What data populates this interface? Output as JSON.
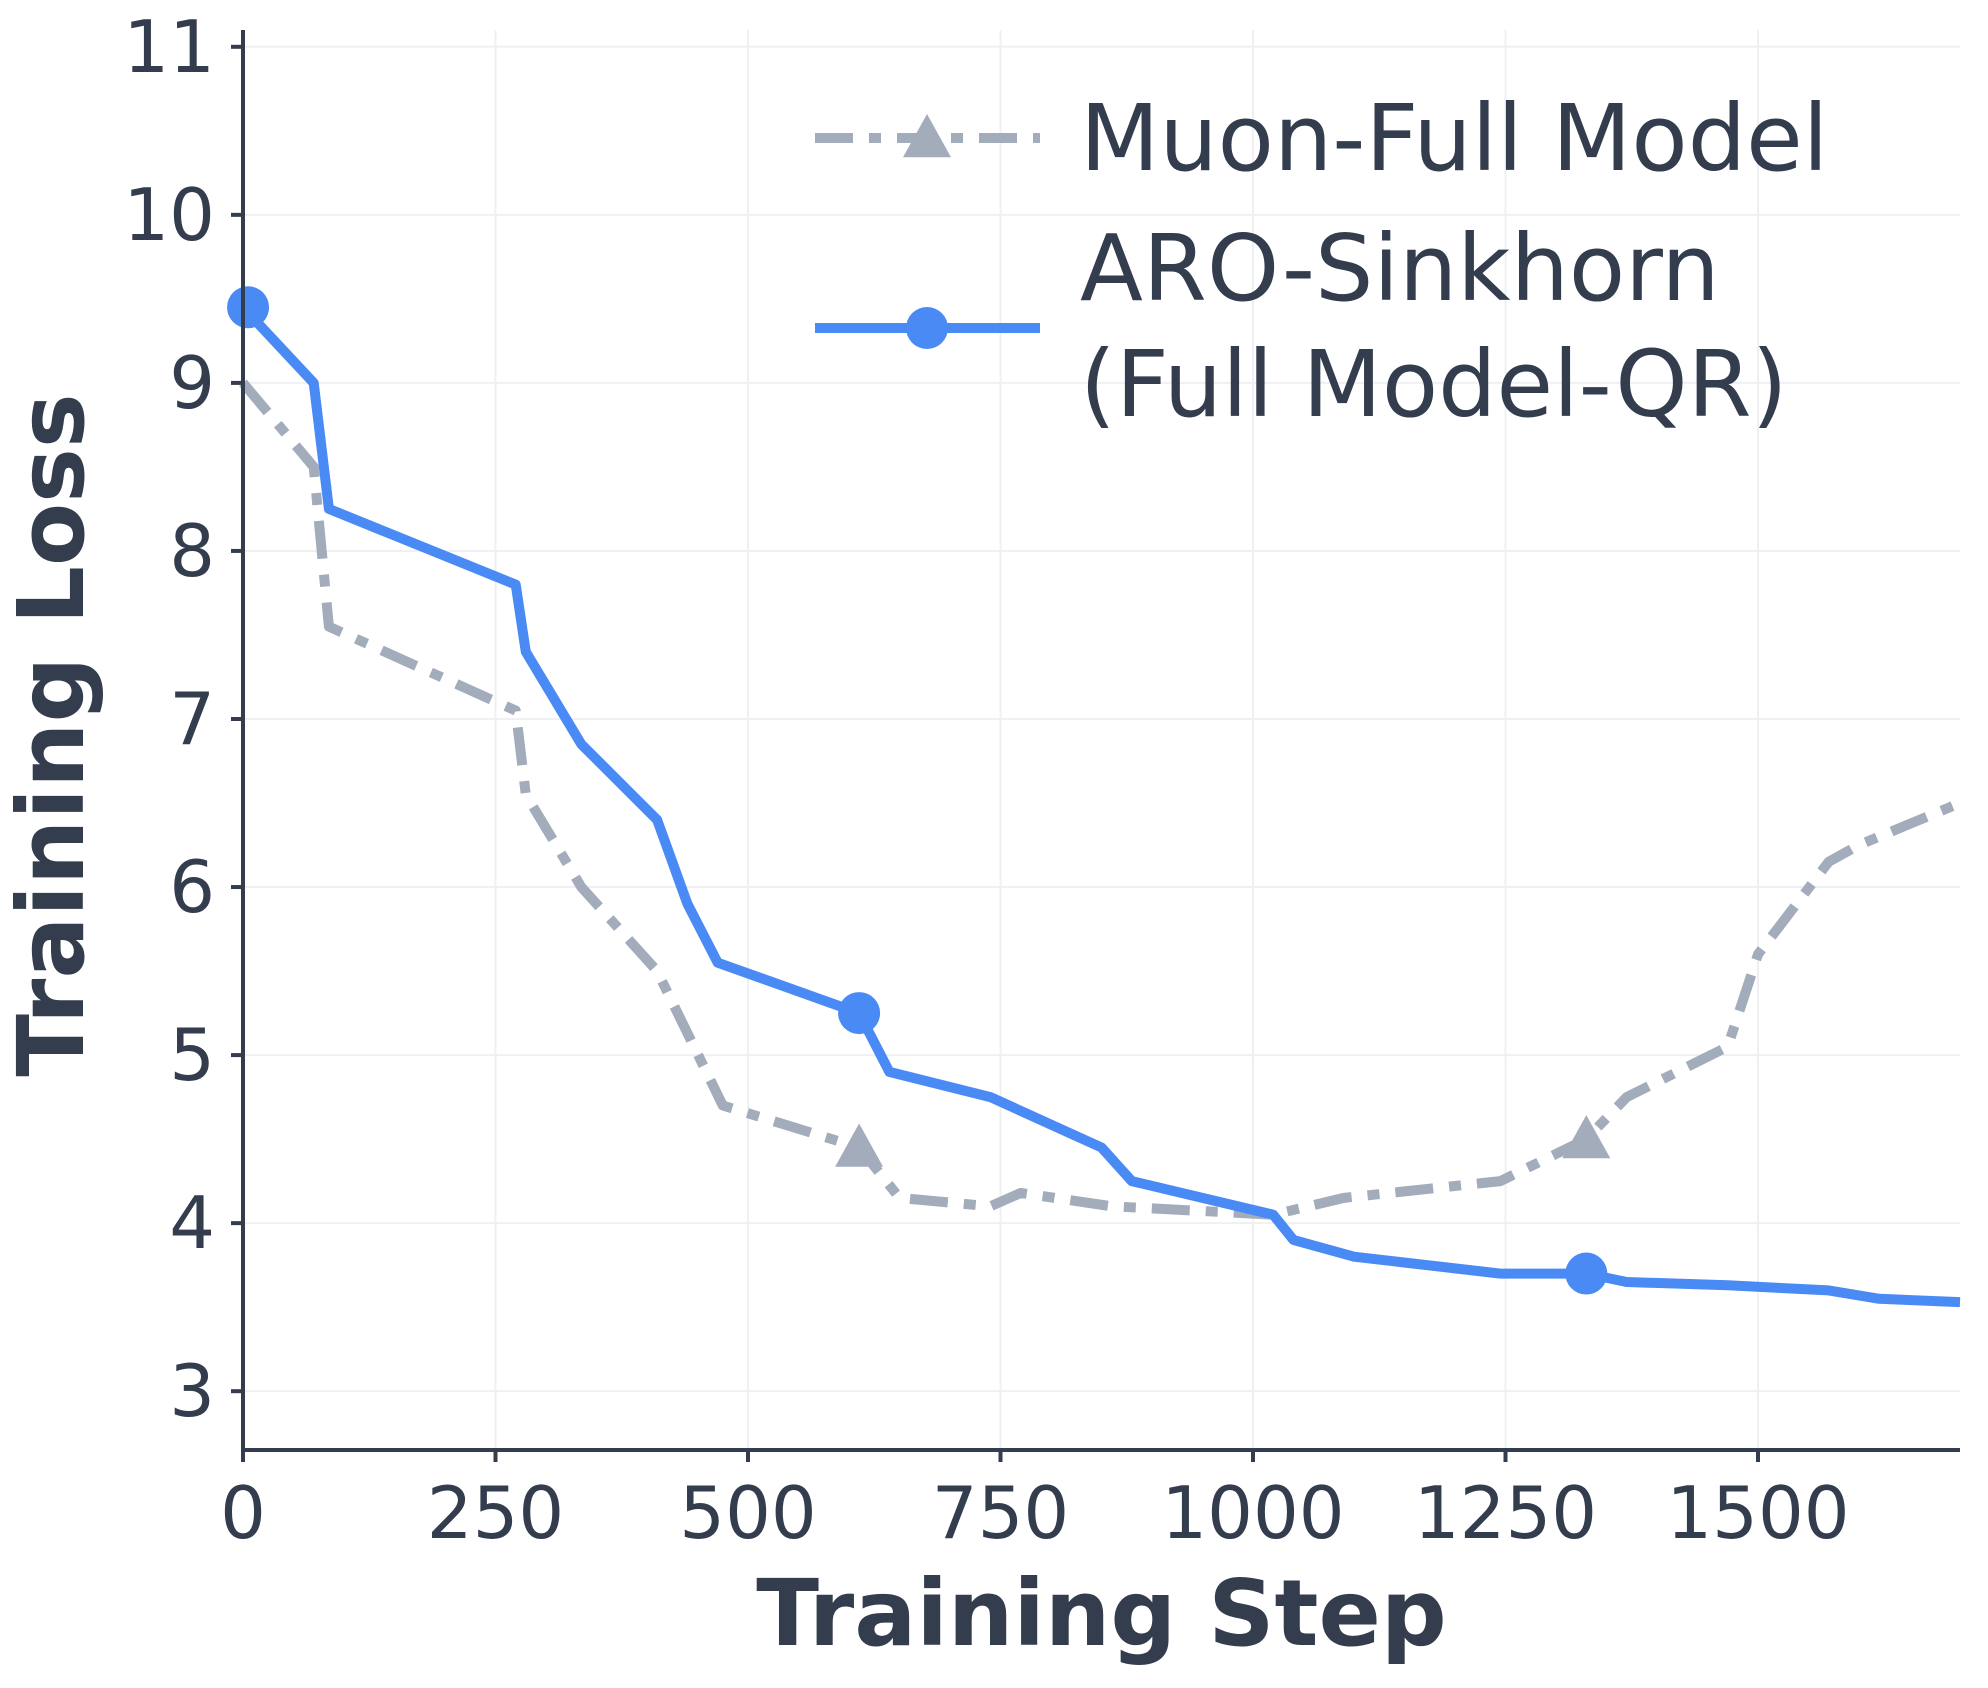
{
  "chart_data": {
    "type": "line",
    "title": "",
    "xlabel": "Training Step",
    "ylabel": "Training Loss",
    "xlim": [
      0,
      1700
    ],
    "ylim": [
      2.65,
      11.1
    ],
    "xticks": [
      0,
      250,
      500,
      750,
      1000,
      1250,
      1500
    ],
    "yticks": [
      3,
      4,
      5,
      6,
      7,
      8,
      9,
      10,
      11
    ],
    "grid": true,
    "legend_position": "top-right",
    "series": [
      {
        "name": "Muon-Full Model",
        "color": "#a2acbb",
        "linestyle": "dashdot",
        "marker": "triangle",
        "x": [
          0,
          70,
          85,
          270,
          280,
          335,
          410,
          475,
          610,
          650,
          740,
          770,
          860,
          1020,
          1090,
          1245,
          1330,
          1370,
          1470,
          1500,
          1570,
          1600,
          1700
        ],
        "y": [
          9.0,
          8.5,
          7.55,
          7.05,
          6.55,
          6.0,
          5.5,
          4.7,
          4.45,
          4.15,
          4.1,
          4.18,
          4.1,
          4.05,
          4.15,
          4.25,
          4.5,
          4.75,
          5.05,
          5.6,
          6.15,
          6.25,
          6.5
        ],
        "marker_x": [
          610,
          1330
        ],
        "marker_y": [
          4.45,
          4.5
        ]
      },
      {
        "name": "ARO-Sinkhorn\n(Full Model-QR)",
        "name_lines": [
          "ARO-Sinkhorn",
          "(Full Model-QR)"
        ],
        "color": "#4a8af4",
        "linestyle": "solid",
        "marker": "circle",
        "x": [
          0,
          70,
          85,
          270,
          280,
          335,
          410,
          440,
          470,
          610,
          640,
          740,
          850,
          880,
          1020,
          1040,
          1100,
          1245,
          1330,
          1370,
          1470,
          1570,
          1620,
          1700
        ],
        "y": [
          9.45,
          9.0,
          8.25,
          7.8,
          7.4,
          6.85,
          6.4,
          5.9,
          5.55,
          5.25,
          4.9,
          4.75,
          4.45,
          4.25,
          4.05,
          3.9,
          3.8,
          3.7,
          3.7,
          3.65,
          3.63,
          3.6,
          3.55,
          3.53
        ],
        "marker_x": [
          5,
          610,
          1330
        ],
        "marker_y": [
          9.45,
          5.25,
          3.7
        ]
      }
    ]
  }
}
